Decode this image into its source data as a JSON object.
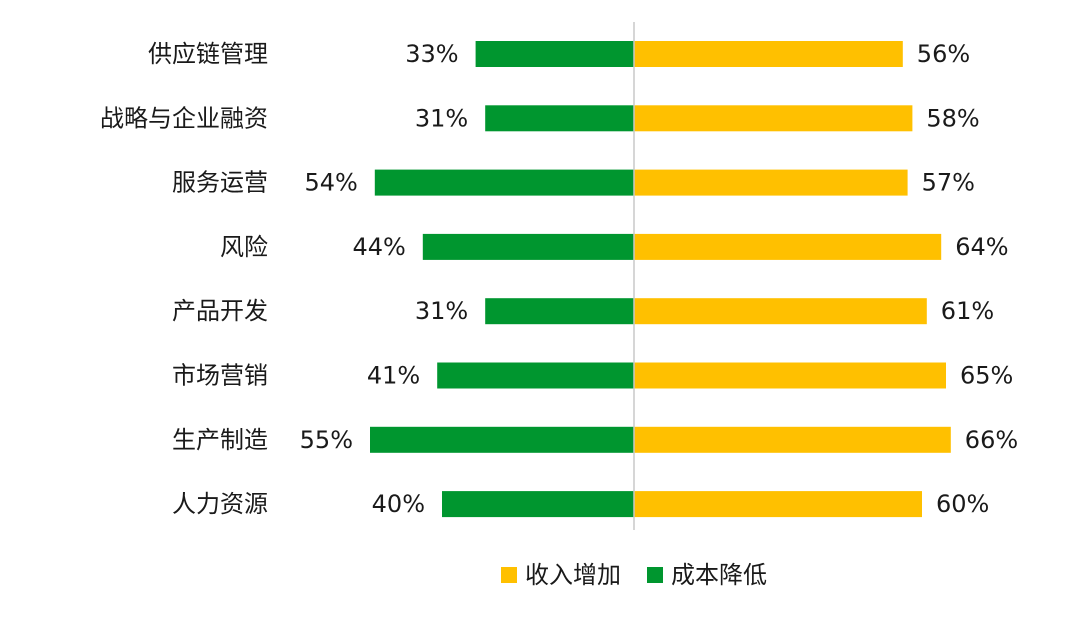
{
  "chart_data": {
    "type": "bar",
    "orientation": "horizontal-diverging",
    "categories": [
      "供应链管理",
      "战略与企业融资",
      "服务运营",
      "风险",
      "产品开发",
      "市场营销",
      "生产制造",
      "人力资源"
    ],
    "series": [
      {
        "name": "收入增加",
        "color": "#FFC000",
        "direction": "right",
        "values": [
          56,
          58,
          57,
          64,
          61,
          65,
          66,
          60
        ],
        "labels": [
          "56%",
          "58%",
          "57%",
          "64%",
          "61%",
          "65%",
          "66%",
          "60%"
        ]
      },
      {
        "name": "成本降低",
        "color": "#00962F",
        "direction": "left",
        "values": [
          33,
          31,
          54,
          44,
          31,
          41,
          55,
          40
        ],
        "labels": [
          "33%",
          "31%",
          "54%",
          "44%",
          "31%",
          "41%",
          "55%",
          "40%"
        ]
      }
    ],
    "unit": "%",
    "legend": {
      "position": "bottom-center",
      "items": [
        {
          "label": "收入增加",
          "color": "#FFC000"
        },
        {
          "label": "成本降低",
          "color": "#00962F"
        }
      ]
    },
    "grid": false,
    "axis_color": "#C8C8C8",
    "label_color": "#1A1A1A"
  }
}
